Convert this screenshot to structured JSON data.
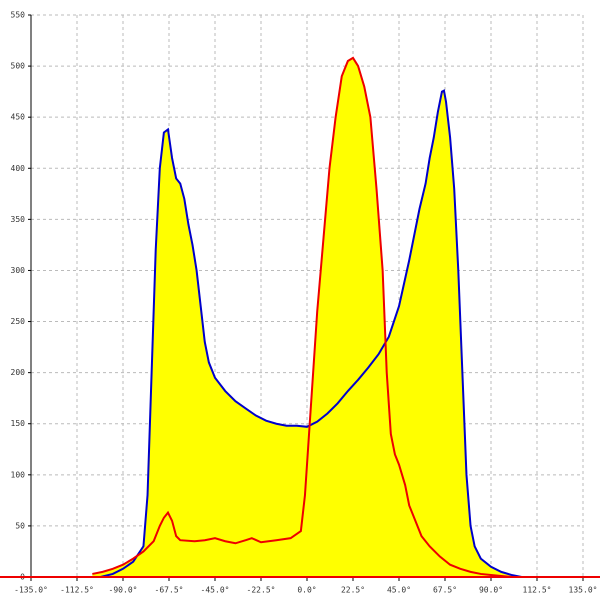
{
  "chart_data": {
    "type": "area",
    "fill_color": "#ffff00",
    "xlim": [
      -135,
      135
    ],
    "ylim": [
      0,
      550
    ],
    "xticks": [
      {
        "value": -135,
        "label": "-135.0°"
      },
      {
        "value": -112.5,
        "label": "-112.5°"
      },
      {
        "value": -90,
        "label": "-90.0°"
      },
      {
        "value": -67.5,
        "label": "-67.5°"
      },
      {
        "value": -45,
        "label": "-45.0°"
      },
      {
        "value": -22.5,
        "label": "-22.5°"
      },
      {
        "value": 0,
        "label": "0.0°"
      },
      {
        "value": 22.5,
        "label": "22.5°"
      },
      {
        "value": 45,
        "label": "45.0°"
      },
      {
        "value": 67.5,
        "label": "67.5°"
      },
      {
        "value": 90,
        "label": "90.0°"
      },
      {
        "value": 112.5,
        "label": "112.5°"
      },
      {
        "value": 135,
        "label": "135.0°"
      }
    ],
    "yticks": [
      0,
      50,
      100,
      150,
      200,
      250,
      300,
      350,
      400,
      450,
      500,
      550
    ],
    "grid": true,
    "series": [
      {
        "name": "blue",
        "color": "#0000cc",
        "x": [
          -101,
          -95,
          -90,
          -85,
          -80,
          -78,
          -76,
          -74,
          -72,
          -70,
          -68,
          -66,
          -64,
          -62,
          -60,
          -58,
          -56,
          -54,
          -52,
          -50,
          -48,
          -45,
          -40,
          -35,
          -30,
          -25,
          -20,
          -15,
          -10,
          -5,
          0,
          5,
          10,
          15,
          20,
          25,
          30,
          35,
          40,
          45,
          50,
          55,
          58,
          60,
          62,
          64,
          66,
          67,
          68,
          70,
          72,
          74,
          76,
          78,
          80,
          82,
          85,
          90,
          95,
          100,
          105
        ],
        "values": [
          0,
          3,
          8,
          15,
          30,
          80,
          200,
          320,
          400,
          435,
          438,
          410,
          390,
          385,
          370,
          345,
          325,
          300,
          265,
          230,
          210,
          195,
          182,
          172,
          165,
          158,
          153,
          150,
          148,
          148,
          147,
          152,
          160,
          170,
          182,
          193,
          205,
          218,
          235,
          265,
          310,
          360,
          385,
          410,
          430,
          455,
          475,
          476,
          465,
          430,
          380,
          300,
          200,
          100,
          50,
          30,
          18,
          10,
          5,
          2,
          0
        ]
      },
      {
        "name": "red",
        "color": "#ee0000",
        "x": [
          -105,
          -100,
          -95,
          -90,
          -85,
          -80,
          -75,
          -72,
          -70,
          -68,
          -66,
          -64,
          -62,
          -55,
          -50,
          -45,
          -40,
          -35,
          -30,
          -27,
          -22.5,
          -15,
          -8,
          -3,
          -1,
          1,
          3,
          5,
          8,
          11,
          14,
          17,
          20,
          22.5,
          25,
          28,
          31,
          34,
          37,
          39,
          41,
          43,
          45,
          48,
          50,
          53,
          56,
          60,
          65,
          70,
          75,
          80,
          85,
          90,
          95,
          100
        ],
        "values": [
          3,
          5,
          8,
          12,
          18,
          25,
          35,
          50,
          58,
          63,
          55,
          40,
          36,
          35,
          36,
          38,
          35,
          33,
          36,
          38,
          34,
          36,
          38,
          45,
          80,
          140,
          200,
          260,
          330,
          400,
          450,
          490,
          505,
          508,
          500,
          480,
          450,
          380,
          300,
          200,
          140,
          120,
          110,
          90,
          70,
          55,
          40,
          30,
          20,
          12,
          8,
          5,
          3,
          2,
          1,
          0
        ]
      }
    ]
  }
}
